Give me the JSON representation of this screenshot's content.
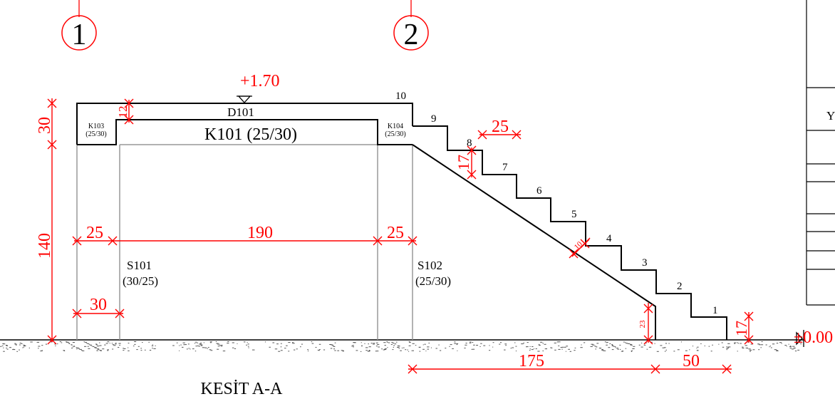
{
  "title": "KESİT A-A",
  "axes": {
    "axis_1": "1",
    "axis_2": "2"
  },
  "elevations": {
    "top": "+1.70",
    "ground": "±0.00"
  },
  "beams": {
    "d101": "D101",
    "k101": "K101 (25/30)",
    "k103_name": "K103",
    "k103_size": "(25/30)",
    "k104_name": "K104",
    "k104_size": "(25/30)"
  },
  "columns": {
    "s101_name": "S101",
    "s101_size": "(30/25)",
    "s102_name": "S102",
    "s102_size": "(25/30)"
  },
  "dimensions": {
    "slab_thickness": "12",
    "beam_depth": "30",
    "column_height": "140",
    "left_column_width": "25",
    "span": "190",
    "right_column_width": "25",
    "column_depth": "30",
    "tread": "25",
    "riser": "17",
    "stair_slab": "10",
    "stair_end": "23",
    "bottom_riser": "17",
    "stair_run": "175",
    "landing": "50"
  },
  "steps": [
    "1",
    "2",
    "3",
    "4",
    "5",
    "6",
    "7",
    "8",
    "9",
    "10"
  ],
  "colors": {
    "dimension": "#ff0000",
    "outline": "#000000",
    "hidden": "#999999"
  }
}
